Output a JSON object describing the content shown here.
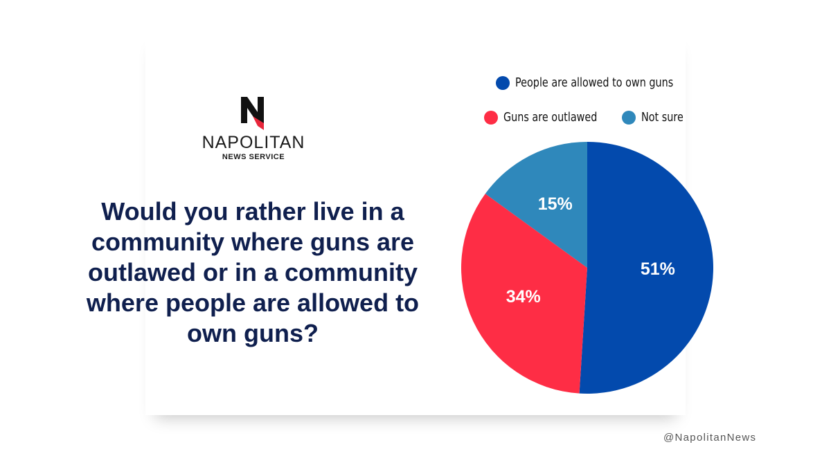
{
  "brand": {
    "name": "NAPOLITAN",
    "subtitle": "NEWS SERVICE",
    "handle": "@NapolitanNews"
  },
  "chart_data": {
    "type": "pie",
    "title": "Would you rather live in a community where guns are outlawed or in a community where people are allowed to own guns?",
    "categories": [
      "People are allowed to own guns",
      "Guns are outlawed",
      "Not sure"
    ],
    "values": [
      51,
      34,
      15
    ],
    "value_labels": [
      "51%",
      "34%",
      "15%"
    ],
    "colors": [
      "#034aad",
      "#fe2d45",
      "#2f88bb"
    ]
  }
}
